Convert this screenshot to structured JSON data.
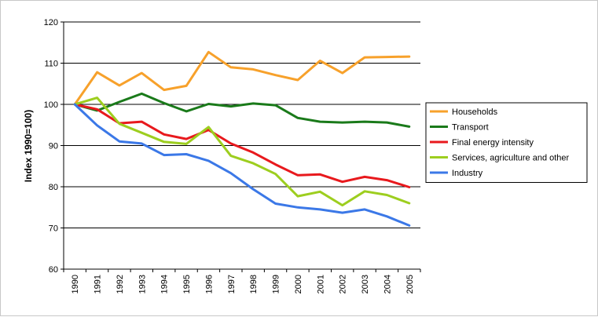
{
  "chart_data": {
    "type": "line",
    "title": "",
    "xlabel": "",
    "ylabel": "Index 1990=100)",
    "ylim": [
      60,
      120
    ],
    "yticks": [
      60,
      70,
      80,
      90,
      100,
      110,
      120
    ],
    "grid": "horizontal",
    "legend_position": "right",
    "x": [
      "1990",
      "1991",
      "1992",
      "1993",
      "1994",
      "1995",
      "1996",
      "1997",
      "1998",
      "1999",
      "2000",
      "2001",
      "2002",
      "2003",
      "2004",
      "2005"
    ],
    "series": [
      {
        "name": "Households",
        "color": "#f7a12b",
        "values": [
          100,
          107.8,
          104.6,
          107.6,
          103.5,
          104.5,
          112.7,
          109.0,
          108.5,
          107.1,
          105.9,
          110.6,
          107.6,
          111.4,
          111.5,
          111.6
        ]
      },
      {
        "name": "Transport",
        "color": "#1a7a1a",
        "values": [
          100,
          98.5,
          100.6,
          102.6,
          100.3,
          98.3,
          100.1,
          99.5,
          100.2,
          99.8,
          96.7,
          95.8,
          95.6,
          95.8,
          95.6,
          94.6
        ]
      },
      {
        "name": "Final energy intensity",
        "color": "#e8191d",
        "values": [
          100,
          98.8,
          95.4,
          95.8,
          92.7,
          91.6,
          93.8,
          90.5,
          88.3,
          85.4,
          82.8,
          83.0,
          81.2,
          82.4,
          81.6,
          79.9
        ]
      },
      {
        "name": "Services, agriculture and other",
        "color": "#9dce1f",
        "values": [
          100,
          101.6,
          95.3,
          93.1,
          90.9,
          90.4,
          94.5,
          87.5,
          85.7,
          83.1,
          77.7,
          78.8,
          75.5,
          78.9,
          78.0,
          76.0
        ]
      },
      {
        "name": "Industry",
        "color": "#3b78e7",
        "values": [
          100,
          94.9,
          91.0,
          90.5,
          87.7,
          87.9,
          86.3,
          83.3,
          79.4,
          75.9,
          75.0,
          74.5,
          73.7,
          74.5,
          72.8,
          70.6
        ]
      }
    ]
  }
}
